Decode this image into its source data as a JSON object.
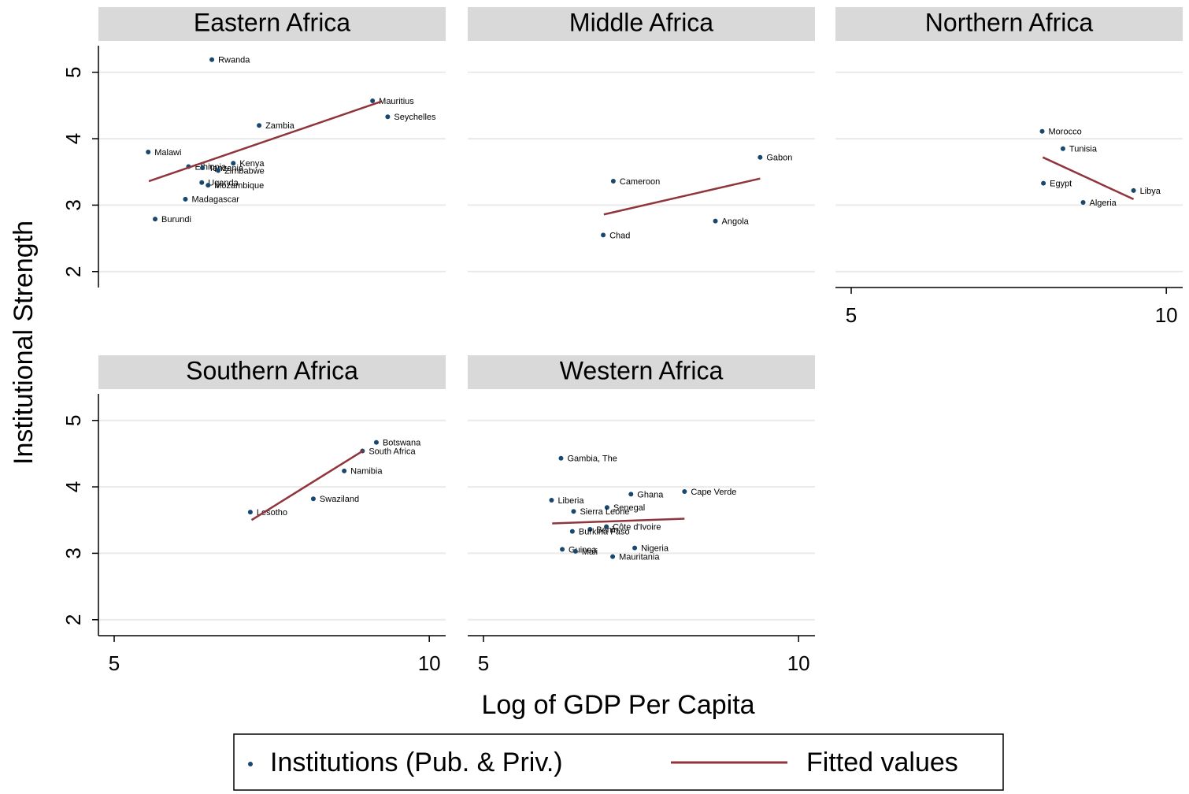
{
  "chart_data": [
    {
      "type": "scatter",
      "title": "Eastern Africa",
      "xlim": [
        4.75,
        10.26
      ],
      "ylim": [
        1.76,
        5.4
      ],
      "yticks": [
        2,
        3,
        4,
        5
      ],
      "grid": true,
      "series": [
        {
          "name": "Institutions (Pub. & Priv.)",
          "color": "#1a476f",
          "labels": [
            "Rwanda",
            "Mauritius",
            "Seychelles",
            "Zambia",
            "Malawi",
            "Ethiopia",
            "Kenya",
            "Tanzania",
            "Zimbabwe",
            "Uganda",
            "Mozambique",
            "Madagascar",
            "Burundi"
          ],
          "x": [
            6.55,
            9.1,
            9.34,
            7.3,
            5.54,
            6.18,
            6.89,
            6.4,
            6.65,
            6.39,
            6.49,
            6.13,
            5.65
          ],
          "values": [
            5.19,
            4.57,
            4.33,
            4.2,
            3.8,
            3.58,
            3.63,
            3.56,
            3.52,
            3.34,
            3.3,
            3.09,
            2.79
          ]
        },
        {
          "name": "Fitted values",
          "type": "line",
          "color": "#90353b",
          "x": [
            5.55,
            9.24
          ],
          "values": [
            3.36,
            4.56
          ]
        }
      ]
    },
    {
      "type": "scatter",
      "title": "Middle Africa",
      "xlim": [
        4.75,
        10.26
      ],
      "ylim": [
        1.76,
        5.4
      ],
      "yticks": [
        2,
        3,
        4,
        5
      ],
      "grid": true,
      "series": [
        {
          "name": "Institutions (Pub. & Priv.)",
          "color": "#1a476f",
          "labels": [
            "Gabon",
            "Cameroon",
            "Angola",
            "Chad"
          ],
          "x": [
            9.39,
            7.06,
            8.68,
            6.9
          ],
          "values": [
            3.72,
            3.36,
            2.76,
            2.55
          ]
        },
        {
          "name": "Fitted values",
          "type": "line",
          "color": "#90353b",
          "x": [
            6.91,
            9.39
          ],
          "values": [
            2.86,
            3.4
          ]
        }
      ]
    },
    {
      "type": "scatter",
      "title": "Northern Africa",
      "xlim": [
        4.75,
        10.26
      ],
      "ylim": [
        1.76,
        5.4
      ],
      "xticks": [
        5,
        10
      ],
      "yticks": [
        2,
        3,
        4,
        5
      ],
      "grid": true,
      "series": [
        {
          "name": "Institutions (Pub. & Priv.)",
          "color": "#1a476f",
          "labels": [
            "Morocco",
            "Tunisia",
            "Egypt",
            "Libya",
            "Algeria"
          ],
          "x": [
            8.03,
            8.36,
            8.05,
            9.48,
            8.68
          ],
          "values": [
            4.11,
            3.85,
            3.33,
            3.22,
            3.04
          ]
        },
        {
          "name": "Fitted values",
          "type": "line",
          "color": "#90353b",
          "x": [
            8.04,
            9.48
          ],
          "values": [
            3.72,
            3.09
          ]
        }
      ]
    },
    {
      "type": "scatter",
      "title": "Southern Africa",
      "xlim": [
        4.75,
        10.26
      ],
      "ylim": [
        1.76,
        5.4
      ],
      "xticks": [
        5,
        10
      ],
      "yticks": [
        2,
        3,
        4,
        5
      ],
      "grid": true,
      "series": [
        {
          "name": "Institutions (Pub. & Priv.)",
          "color": "#1a476f",
          "labels": [
            "Botswana",
            "South Africa",
            "Namibia",
            "Swaziland",
            "Lesotho"
          ],
          "x": [
            9.16,
            8.94,
            8.65,
            8.16,
            7.16
          ],
          "values": [
            4.67,
            4.54,
            4.24,
            3.82,
            3.62
          ]
        },
        {
          "name": "Fitted values",
          "type": "line",
          "color": "#90353b",
          "x": [
            7.18,
            8.96
          ],
          "values": [
            3.5,
            4.55
          ]
        }
      ]
    },
    {
      "type": "scatter",
      "title": "Western Africa",
      "xlim": [
        4.75,
        10.26
      ],
      "ylim": [
        1.76,
        5.4
      ],
      "xticks": [
        5,
        10
      ],
      "yticks": [
        2,
        3,
        4,
        5
      ],
      "grid": true,
      "series": [
        {
          "name": "Institutions (Pub. & Priv.)",
          "color": "#1a476f",
          "labels": [
            "Gambia, The",
            "Cape Verde",
            "Ghana",
            "Liberia",
            "Senegal",
            "Sierra Leone",
            "Côte d'Ivoire",
            "Benin",
            "Burkina Faso",
            "Nigeria",
            "Guinea",
            "Mali",
            "Mauritania"
          ],
          "x": [
            6.23,
            8.19,
            7.34,
            6.08,
            6.96,
            6.43,
            6.95,
            6.69,
            6.41,
            7.4,
            6.25,
            6.46,
            7.05
          ],
          "values": [
            4.43,
            3.93,
            3.89,
            3.8,
            3.69,
            3.63,
            3.4,
            3.36,
            3.33,
            3.08,
            3.06,
            3.03,
            2.95
          ]
        },
        {
          "name": "Fitted values",
          "type": "line",
          "color": "#90353b",
          "x": [
            6.09,
            8.19
          ],
          "values": [
            3.45,
            3.52
          ]
        }
      ]
    }
  ],
  "x_label": "Log of GDP Per Capita",
  "y_label": "Institutional Strength"
}
